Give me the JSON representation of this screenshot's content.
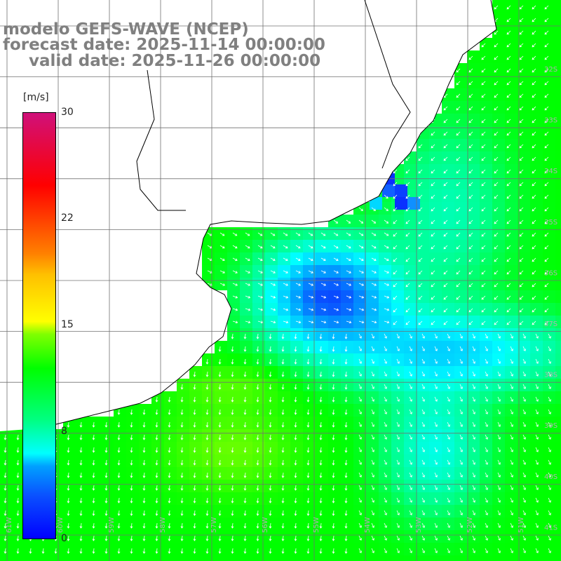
{
  "title": {
    "line1": "modelo GEFS-WAVE (NCEP)",
    "line2": "forecast date: 2025-11-14 00:00:00",
    "line3": "valid date: 2025-11-26 00:00:00"
  },
  "colorbar": {
    "unit": "[m/s]",
    "ticks": [
      "30",
      "22",
      "15",
      "8",
      "0"
    ],
    "tick_values": [
      30,
      22,
      15,
      8,
      0
    ],
    "range": [
      0,
      30
    ]
  },
  "map": {
    "variable": "wind speed",
    "palette": {
      "low": "#0000ff",
      "mid_low": "#00ffff",
      "mid": "#00ff00",
      "mid_high": "#ffff00",
      "high": "#ff0000",
      "max": "#d0107a"
    },
    "land_color": "#ffffff",
    "coastline_color": "#000000",
    "grid_color": "#707070",
    "arrow_color": "#ffffff",
    "lat_labels": [
      "32S",
      "33S",
      "34S",
      "35S",
      "36S",
      "37S",
      "38S",
      "39S",
      "40S",
      "41S"
    ],
    "lon_labels": [
      "61W",
      "60W",
      "59W",
      "58W",
      "57W",
      "56W",
      "55W",
      "54W",
      "53W",
      "52W",
      "51W"
    ]
  }
}
